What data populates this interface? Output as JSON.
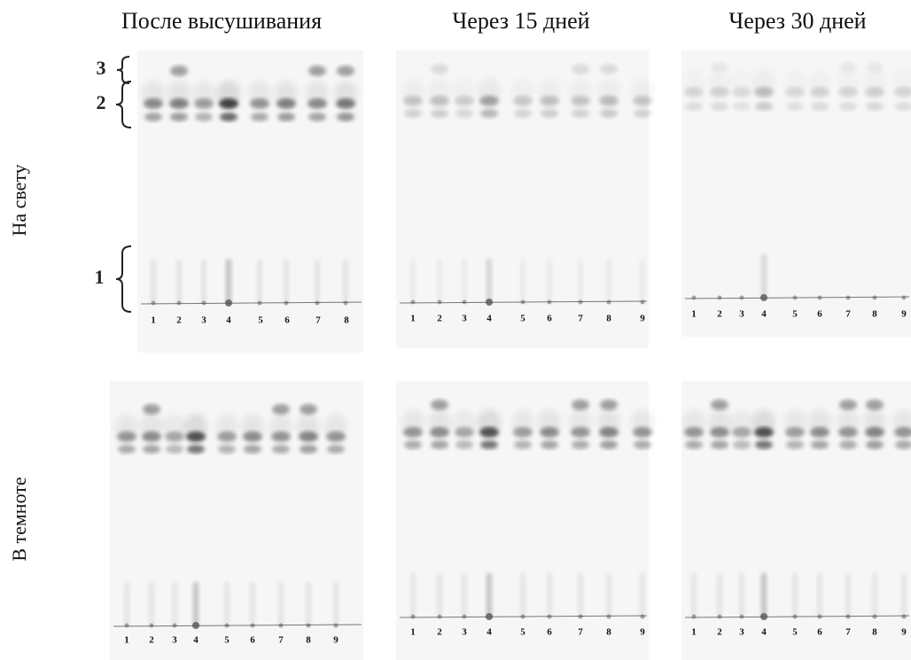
{
  "column_titles": [
    "После высушивания",
    "Через 15 дней",
    "Через 30 дней"
  ],
  "row_labels": [
    "На свету",
    "В темноте"
  ],
  "band_labels": [
    "3",
    "2",
    "1"
  ],
  "panels": [
    {
      "lanes": [
        "1",
        "2",
        "3",
        "4",
        "5",
        "6",
        "7",
        "8"
      ]
    },
    {
      "lanes": [
        "1",
        "2",
        "3",
        "4",
        "5",
        "6",
        "7",
        "8",
        "9"
      ]
    },
    {
      "lanes": [
        "1",
        "2",
        "3",
        "4",
        "5",
        "6",
        "7",
        "8",
        "9"
      ]
    },
    {
      "lanes": [
        "1",
        "2",
        "3",
        "4",
        "5",
        "6",
        "7",
        "8",
        "9"
      ]
    },
    {
      "lanes": [
        "1",
        "2",
        "3",
        "4",
        "5",
        "6",
        "7",
        "8",
        "9"
      ]
    },
    {
      "lanes": [
        "1",
        "2",
        "3",
        "4",
        "5",
        "6",
        "7",
        "8",
        "9"
      ]
    }
  ]
}
